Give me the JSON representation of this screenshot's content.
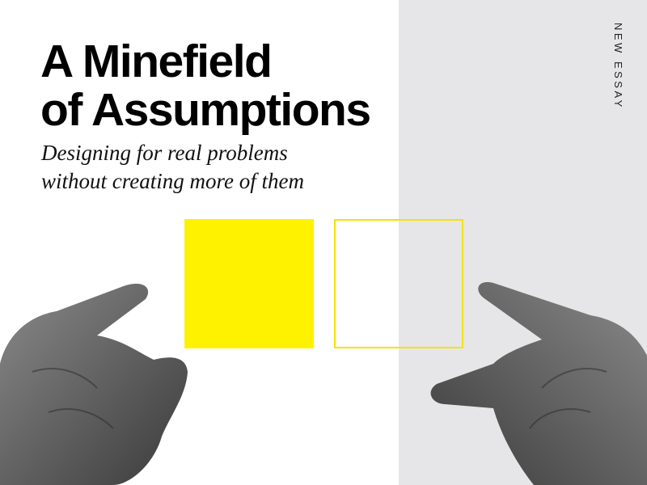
{
  "title": {
    "line1": "A Minefield",
    "line2": "of Assumptions"
  },
  "subtitle": {
    "line1": "Designing for real problems",
    "line2": "without creating more of them"
  },
  "label": "NEW ESSAY",
  "colors": {
    "accent": "#fff200",
    "panel": "#e6e6e8",
    "text": "#000000"
  }
}
